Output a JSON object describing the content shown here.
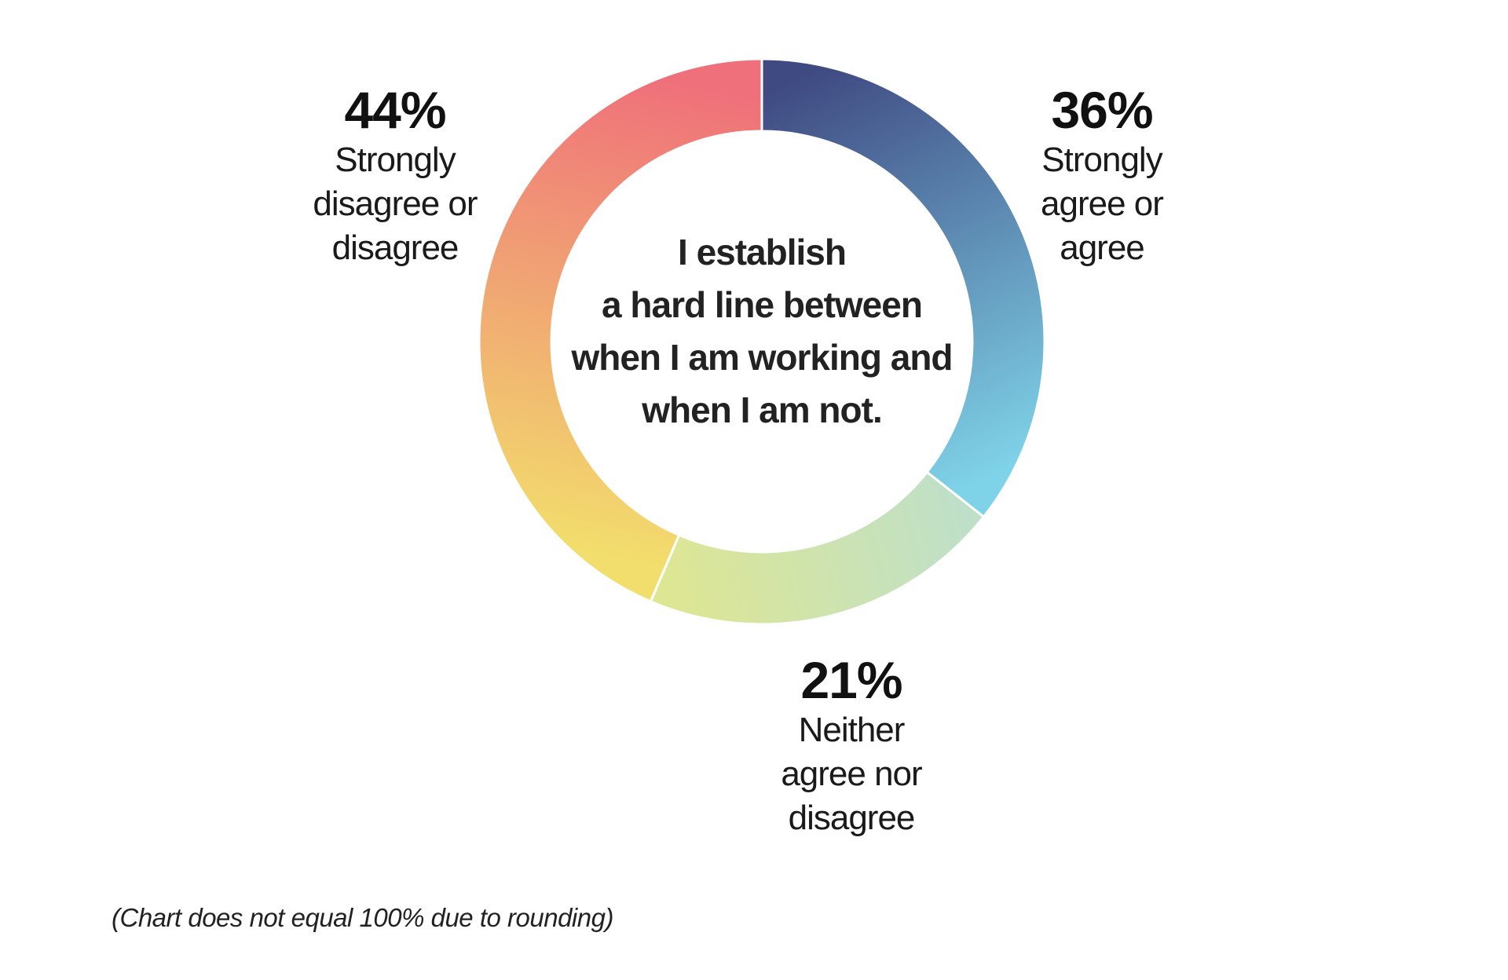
{
  "chart_data": {
    "type": "pie",
    "donut": true,
    "center_text": [
      "I establish",
      "a hard line between",
      "when I am working and",
      "when I am not."
    ],
    "slices": [
      {
        "value": 36,
        "label": "36%",
        "description": "Strongly\nagree or\nagree",
        "color_start": "#3f4a82",
        "color_end": "#7fd3e8"
      },
      {
        "value": 21,
        "label": "21%",
        "description": "Neither\nagree nor\ndisagree",
        "color_start": "#bfe0c8",
        "color_end": "#dde693"
      },
      {
        "value": 44,
        "label": "44%",
        "description": "Strongly\ndisagree or\ndisagree",
        "color_start": "#f2de6c",
        "color_end": "#ef6f7a"
      }
    ],
    "footnote": "(Chart does not equal 100% due to rounding)"
  }
}
